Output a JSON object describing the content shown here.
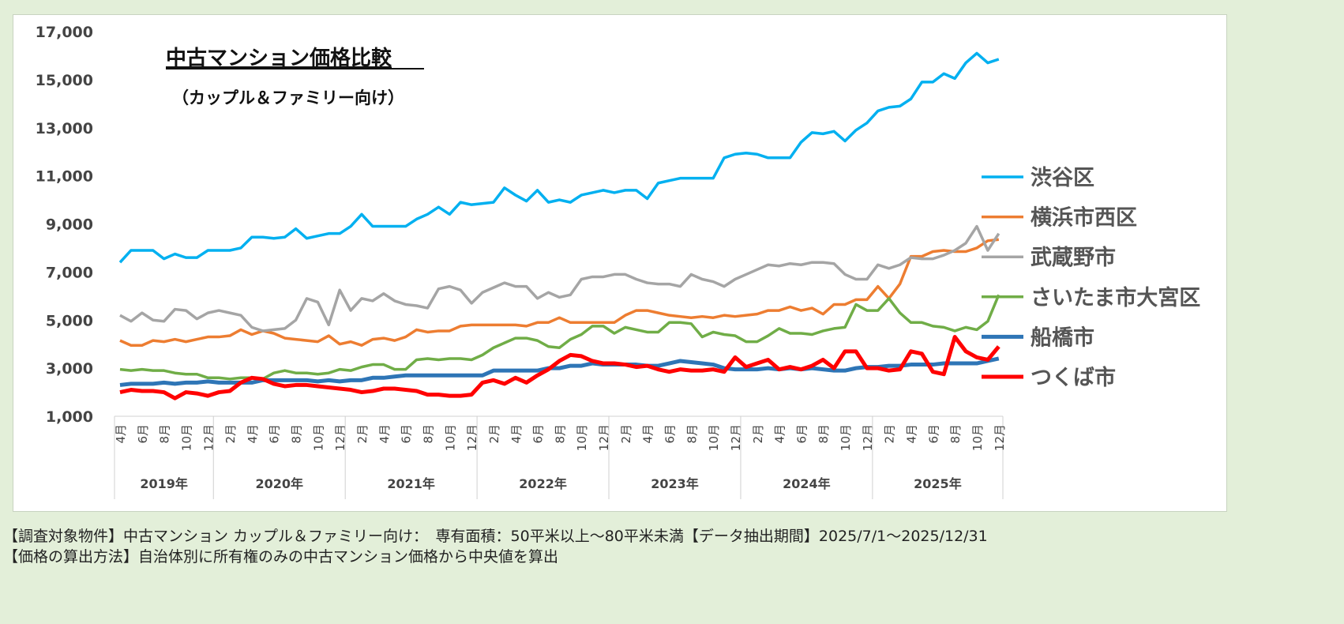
{
  "chart_data": {
    "type": "line",
    "title": "中古マンション価格比較",
    "subtitle": "（カップル＆ファミリー向け）",
    "ylim": [
      1000,
      17000
    ],
    "yticks": [
      "1,000",
      "3,000",
      "5,000",
      "7,000",
      "9,000",
      "11,000",
      "13,000",
      "15,000",
      "17,000"
    ],
    "ytick_values": [
      1000,
      3000,
      5000,
      7000,
      9000,
      11000,
      13000,
      15000,
      17000
    ],
    "years": [
      "2019年",
      "2020年",
      "2021年",
      "2022年",
      "2023年",
      "2024年",
      "2025年"
    ],
    "x_start": "2019-04",
    "x_end": "2025-12",
    "month_suffix": "月",
    "legend": "right",
    "grid": false,
    "series": [
      {
        "name": "渋谷区",
        "color": "#00b0f0",
        "values": [
          7400,
          7900,
          7900,
          7900,
          7550,
          7750,
          7600,
          7600,
          7900,
          7900,
          7900,
          8000,
          8450,
          8450,
          8400,
          8450,
          8800,
          8400,
          8500,
          8600,
          8600,
          8900,
          9400,
          8900,
          8900,
          8900,
          8900,
          9200,
          9400,
          9700,
          9400,
          9900,
          9800,
          9850,
          9900,
          10500,
          10200,
          9950,
          10400,
          9900,
          10000,
          9900,
          10200,
          10300,
          10400,
          10300,
          10400,
          10400,
          10050,
          10700,
          10800,
          10900,
          10900,
          10900,
          10900,
          11750,
          11900,
          11950,
          11900,
          11750,
          11750,
          11750,
          12400,
          12800,
          12750,
          12850,
          12450,
          12900,
          13200,
          13700,
          13850,
          13900,
          14200,
          14900,
          14900,
          15250,
          15050,
          15700,
          16100,
          15700,
          15850
        ]
      },
      {
        "name": "横浜市西区",
        "color": "#ed7d31",
        "values": [
          4150,
          3950,
          3950,
          4150,
          4100,
          4200,
          4100,
          4200,
          4300,
          4300,
          4350,
          4600,
          4400,
          4550,
          4450,
          4250,
          4200,
          4150,
          4100,
          4350,
          4000,
          4100,
          3950,
          4200,
          4250,
          4150,
          4300,
          4600,
          4500,
          4550,
          4550,
          4750,
          4800,
          4800,
          4800,
          4800,
          4800,
          4750,
          4900,
          4900,
          5100,
          4900,
          4900,
          4900,
          4900,
          4900,
          5200,
          5400,
          5400,
          5300,
          5200,
          5150,
          5100,
          5150,
          5100,
          5200,
          5150,
          5200,
          5250,
          5400,
          5400,
          5550,
          5400,
          5500,
          5250,
          5650,
          5650,
          5850,
          5850,
          6400,
          5900,
          6500,
          7650,
          7650,
          7850,
          7900,
          7850,
          7850,
          8000,
          8300,
          8350
        ]
      },
      {
        "name": "武蔵野市",
        "color": "#a5a5a5",
        "values": [
          5200,
          4950,
          5300,
          5000,
          4950,
          5450,
          5400,
          5050,
          5300,
          5400,
          5300,
          5200,
          4700,
          4550,
          4600,
          4650,
          5000,
          5900,
          5750,
          4800,
          6250,
          5400,
          5900,
          5800,
          6100,
          5800,
          5650,
          5600,
          5500,
          6300,
          6400,
          6250,
          5700,
          6150,
          6350,
          6550,
          6400,
          6400,
          5900,
          6150,
          5950,
          6050,
          6700,
          6800,
          6800,
          6900,
          6900,
          6700,
          6550,
          6500,
          6500,
          6400,
          6900,
          6700,
          6600,
          6400,
          6700,
          6900,
          7100,
          7300,
          7250,
          7350,
          7300,
          7400,
          7400,
          7350,
          6900,
          6700,
          6700,
          7300,
          7150,
          7300,
          7600,
          7550,
          7550,
          7700,
          7900,
          8200,
          8900,
          7900,
          8600
        ]
      },
      {
        "name": "さいたま市大宮区",
        "color": "#70ad47",
        "values": [
          2950,
          2900,
          2950,
          2900,
          2900,
          2800,
          2750,
          2750,
          2600,
          2600,
          2550,
          2600,
          2600,
          2550,
          2800,
          2900,
          2800,
          2800,
          2750,
          2800,
          2950,
          2900,
          3050,
          3150,
          3150,
          2950,
          2950,
          3350,
          3400,
          3350,
          3400,
          3400,
          3350,
          3550,
          3850,
          4050,
          4250,
          4250,
          4150,
          3900,
          3850,
          4200,
          4400,
          4750,
          4750,
          4450,
          4700,
          4600,
          4500,
          4500,
          4900,
          4900,
          4850,
          4300,
          4500,
          4400,
          4350,
          4100,
          4100,
          4350,
          4650,
          4450,
          4450,
          4400,
          4550,
          4650,
          4700,
          5650,
          5400,
          5400,
          5900,
          5300,
          4900,
          4900,
          4750,
          4700,
          4550,
          4700,
          4600,
          4950,
          6050
        ]
      },
      {
        "name": "船橋市",
        "color": "#2e75b6",
        "values": [
          2300,
          2350,
          2350,
          2350,
          2400,
          2350,
          2400,
          2400,
          2450,
          2400,
          2400,
          2400,
          2400,
          2500,
          2500,
          2500,
          2500,
          2500,
          2450,
          2500,
          2450,
          2500,
          2500,
          2600,
          2600,
          2650,
          2700,
          2700,
          2700,
          2700,
          2700,
          2700,
          2700,
          2700,
          2900,
          2900,
          2900,
          2900,
          2900,
          3000,
          3000,
          3100,
          3100,
          3200,
          3150,
          3150,
          3150,
          3150,
          3100,
          3100,
          3200,
          3300,
          3250,
          3200,
          3150,
          3000,
          2950,
          2950,
          2950,
          3000,
          2950,
          3000,
          2950,
          3000,
          2950,
          2900,
          2900,
          3000,
          3050,
          3050,
          3100,
          3100,
          3150,
          3150,
          3150,
          3200,
          3200,
          3200,
          3200,
          3300,
          3400
        ]
      },
      {
        "name": "つくば市",
        "color": "#ff0000",
        "values": [
          2000,
          2100,
          2050,
          2050,
          2000,
          1750,
          2000,
          1950,
          1850,
          2000,
          2050,
          2400,
          2600,
          2550,
          2350,
          2250,
          2300,
          2300,
          2250,
          2200,
          2150,
          2100,
          2000,
          2050,
          2150,
          2150,
          2100,
          2050,
          1900,
          1900,
          1850,
          1850,
          1900,
          2400,
          2500,
          2350,
          2600,
          2400,
          2700,
          2950,
          3300,
          3550,
          3500,
          3300,
          3200,
          3200,
          3150,
          3050,
          3100,
          2950,
          2850,
          2950,
          2900,
          2900,
          2950,
          2850,
          3450,
          3050,
          3200,
          3350,
          2950,
          3050,
          2950,
          3100,
          3350,
          3000,
          3700,
          3700,
          3000,
          3000,
          2900,
          2950,
          3700,
          3600,
          2850,
          2750,
          4300,
          3700,
          3450,
          3350,
          3900
        ]
      }
    ]
  },
  "footer": {
    "line1": "【調査対象物件】中古マンション カップル＆ファミリー向け：　専有面積：50平米以上～80平米未満【データ抽出期間】2025/7/1～2025/12/31",
    "line2": "【価格の算出方法】自治体別に所有権のみの中古マンション価格から中央値を算出"
  }
}
